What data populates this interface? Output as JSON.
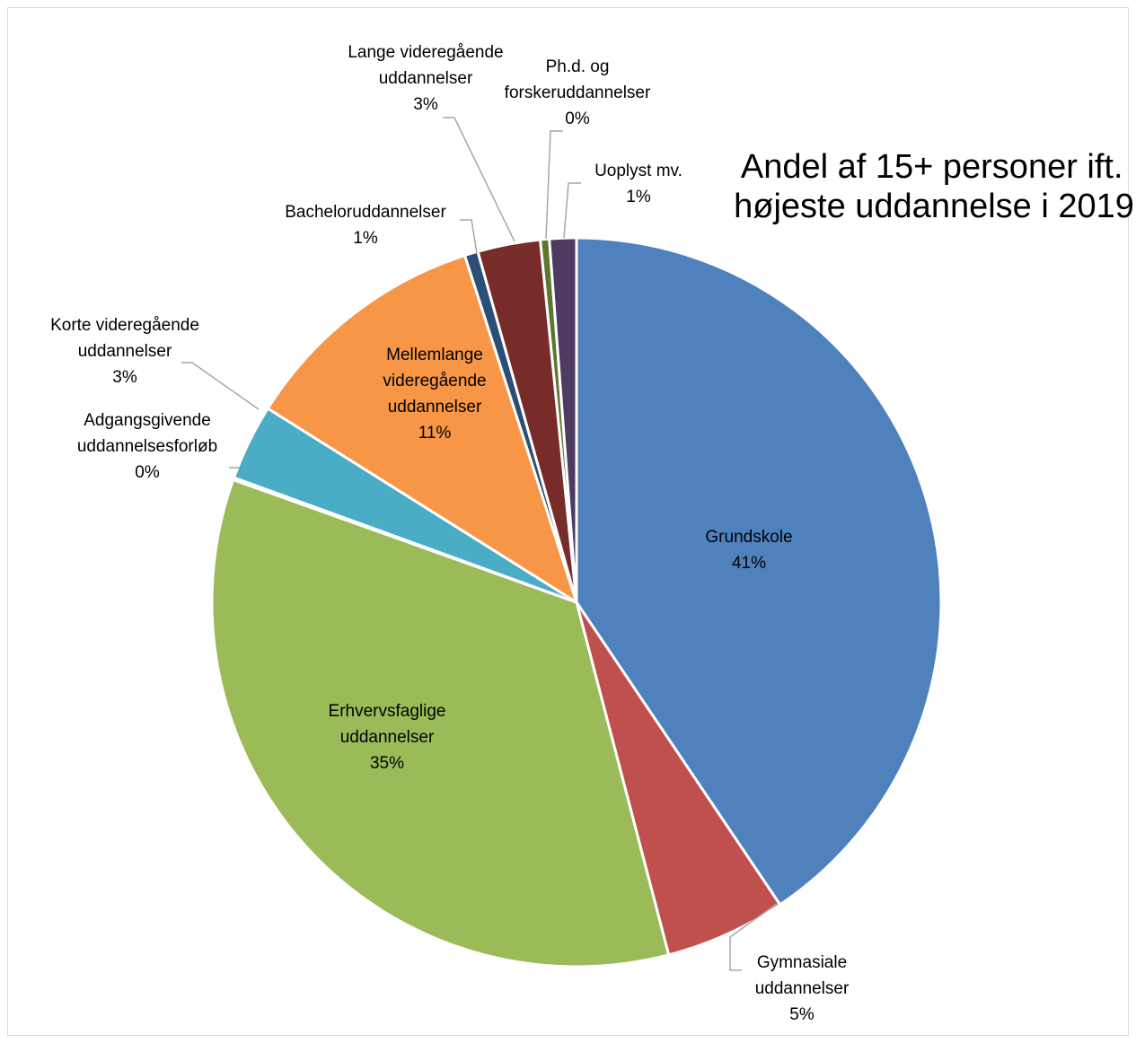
{
  "chart_data": {
    "type": "pie",
    "title_lines": [
      "Andel af 15+ personer ift.",
      "højeste uddannelse i 2019"
    ],
    "start_angle_deg": 0,
    "direction": "clockwise",
    "slices": [
      {
        "name": "Grundskole",
        "label_lines": [
          "Grundskole",
          "41%"
        ],
        "value": 40.9,
        "color": "#4F81BD"
      },
      {
        "name": "Gymnasiale uddannelser",
        "label_lines": [
          "Gymnasiale",
          "uddannelser",
          "5%"
        ],
        "value": 5.4,
        "color": "#C0504D"
      },
      {
        "name": "Erhvervsfaglige uddannelser",
        "label_lines": [
          "Erhvervsfaglige",
          "uddannelser",
          "35%"
        ],
        "value": 34.8,
        "color": "#9BBB59"
      },
      {
        "name": "Adgangsgivende uddannelsesforløb",
        "label_lines": [
          "Adgangsgivende",
          "uddannelsesforløb",
          "0%"
        ],
        "value": 0.1,
        "color": "#8064A2"
      },
      {
        "name": "Korte videregående uddannelser",
        "label_lines": [
          "Korte videregående",
          "uddannelser",
          "3%"
        ],
        "value": 3.4,
        "color": "#4BACC6"
      },
      {
        "name": "Mellemlange videregående uddannelser",
        "label_lines": [
          "Mellemlange",
          "videregående",
          "uddannelser",
          "11%"
        ],
        "value": 11.2,
        "color": "#F79646"
      },
      {
        "name": "Bacheloruddannelser",
        "label_lines": [
          "Bacheloruddannelser",
          "1%"
        ],
        "value": 0.6,
        "color": "#2C4D75"
      },
      {
        "name": "Lange videregående uddannelser",
        "label_lines": [
          "Lange videregående",
          "uddannelser",
          "3%"
        ],
        "value": 2.8,
        "color": "#772C2A"
      },
      {
        "name": "Ph.d. og forskeruddannelser",
        "label_lines": [
          "Ph.d. og",
          "forskeruddannelser",
          "0%"
        ],
        "value": 0.4,
        "color": "#5F7530"
      },
      {
        "name": "Uoplyst mv.",
        "label_lines": [
          "Uoplyst mv.",
          "1%"
        ],
        "value": 1.2,
        "color": "#4D3B62"
      }
    ]
  }
}
